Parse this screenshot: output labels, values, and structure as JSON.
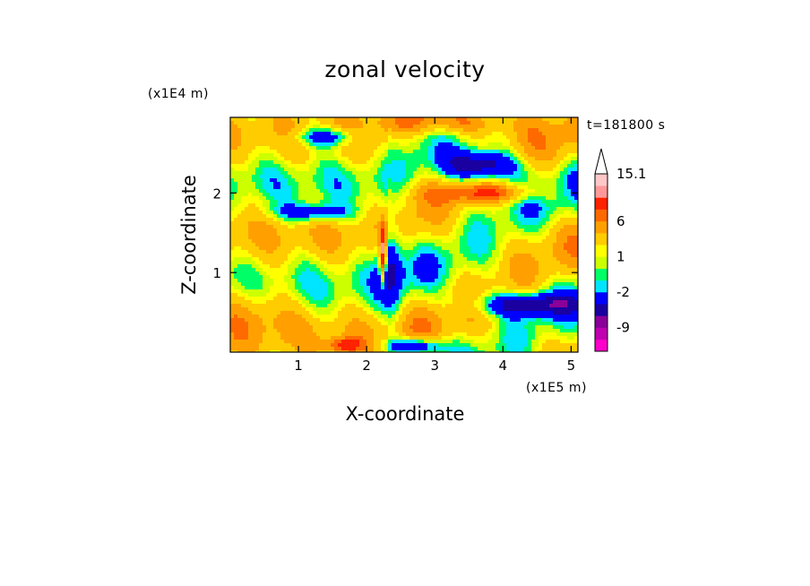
{
  "chart_data": {
    "type": "heatmap",
    "title": "zonal velocity",
    "xlabel": "X-coordinate",
    "ylabel": "Z-coordinate",
    "x_unit": "(x1E5 m)",
    "y_unit": "(x1E4 m)",
    "time_label": "t=181800 s",
    "xlim": [
      0,
      5.1
    ],
    "ylim": [
      0,
      2.95
    ],
    "x_ticks": [
      1,
      2,
      3,
      4,
      5
    ],
    "y_ticks": [
      1,
      2
    ],
    "colorbar": {
      "levels": [
        -13,
        -11,
        -9,
        -7,
        -5,
        -2,
        -1,
        0,
        1,
        2,
        4,
        6,
        8,
        10.5,
        13,
        15.1
      ],
      "colors": [
        "#ff00cc",
        "#c000b0",
        "#8a0099",
        "#1a00a0",
        "#0000ff",
        "#00e5ff",
        "#00ff66",
        "#ccff00",
        "#ffff00",
        "#ffcc00",
        "#ffa000",
        "#ff6a00",
        "#ff2200",
        "#ff9999",
        "#ffc8c8"
      ],
      "labels": [
        {
          "value": -9,
          "text": "-9"
        },
        {
          "value": -2,
          "text": "-2"
        },
        {
          "value": 1,
          "text": "1"
        },
        {
          "value": 6,
          "text": "6"
        },
        {
          "value": 15.1,
          "text": "15.1"
        }
      ],
      "extend": "max"
    },
    "grid": false
  }
}
